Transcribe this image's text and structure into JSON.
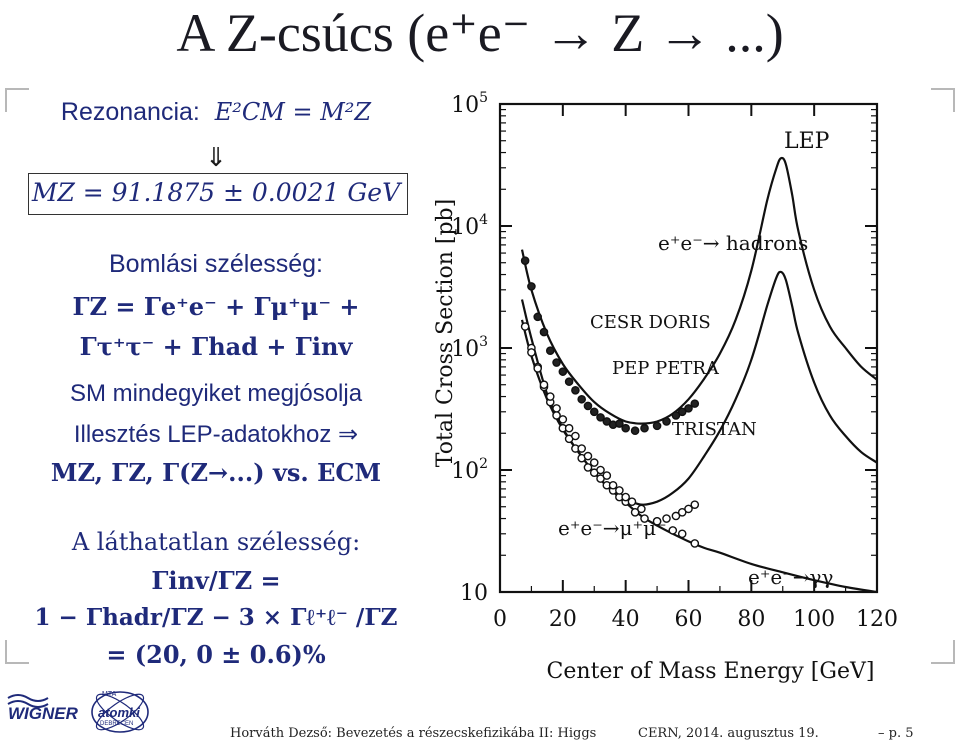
{
  "title": "A Z-csúcs (e⁺e⁻ → Z → ...)",
  "left": {
    "rezonancia_label": "Rezonancia:",
    "rezonancia_formula": "E²CM = M²Z",
    "arrow_down": "⇓",
    "mz_formula": "MZ = 91.1875 ± 0.0021 GeV",
    "bomlasi": "Bomlási szélesség:",
    "gamma_line1": "ΓZ = Γe⁺e⁻ + Γμ⁺μ⁻ +",
    "gamma_line2": "Γτ⁺τ⁻ + Γhad + Γinv",
    "sm_text": "SM mindegyiket megjósolja",
    "illesztes": "Illesztés LEP-adatokhoz ⇒",
    "mz_gz": "MZ, ΓZ, Γ(Z→...) vs. ECM",
    "lathatatlan": "A láthatatlan szélesség:",
    "ginv_line1": "Γinv/ΓZ =",
    "ginv_line2": "1 − Γhadr/ΓZ − 3 × Γℓ⁺ℓ⁻ /ΓZ",
    "ginv_line3": "= (20, 0 ± 0.6)%"
  },
  "logo": {
    "wigner": "WIGNER",
    "atomki": "atomki",
    "mta": "MTA",
    "debrecen": "DEBRECEN"
  },
  "footer": {
    "author": "Horváth Dezső: Bevezetés a részecskefizikába II: Higgs",
    "place_date": "CERN, 2014. augusztus 19.",
    "page": "– p. 5"
  },
  "chart_data": {
    "type": "line",
    "ylabel": "Total Cross Section [pb]",
    "xlabel": "Center of Mass Energy [GeV]",
    "xlim": [
      0,
      120
    ],
    "ylim": [
      10,
      100000
    ],
    "yscale": "log",
    "x_ticks": [
      "0",
      "20",
      "40",
      "60",
      "80",
      "100",
      "120"
    ],
    "y_ticks": [
      "10",
      "10²",
      "10³",
      "10⁴",
      "10⁵"
    ],
    "annotations": {
      "lep": "LEP",
      "hadrons": "e⁺e⁻→ hadrons",
      "cesr": "CESR DORIS",
      "pep": "PEP PETRA",
      "tristan": "TRISTAN",
      "mumu": "e⁺e⁻→μ⁺μ⁻",
      "gg": "e⁺e⁻→γγ"
    },
    "series": [
      {
        "values": [
          [
            7,
            6400
          ],
          [
            10,
            3000
          ],
          [
            15,
            1300
          ],
          [
            20,
            740
          ],
          [
            25,
            500
          ],
          [
            30,
            360
          ],
          [
            35,
            290
          ],
          [
            40,
            250
          ],
          [
            45,
            240
          ],
          [
            50,
            250
          ],
          [
            55,
            290
          ],
          [
            60,
            380
          ],
          [
            65,
            560
          ],
          [
            70,
            900
          ],
          [
            75,
            1700
          ],
          [
            80,
            4300
          ],
          [
            85,
            16000
          ],
          [
            88,
            30000
          ],
          [
            89.5,
            36000
          ],
          [
            91,
            32000
          ],
          [
            93,
            18000
          ],
          [
            95,
            9000
          ],
          [
            100,
            3000
          ],
          [
            105,
            1500
          ],
          [
            110,
            1000
          ],
          [
            115,
            700
          ],
          [
            120,
            550
          ]
        ]
      },
      {
        "values": [
          [
            7,
            2500
          ],
          [
            10,
            1200
          ],
          [
            15,
            420
          ],
          [
            20,
            220
          ],
          [
            25,
            140
          ],
          [
            30,
            95
          ],
          [
            35,
            70
          ],
          [
            40,
            58
          ],
          [
            45,
            52
          ],
          [
            50,
            55
          ],
          [
            55,
            65
          ],
          [
            60,
            85
          ],
          [
            65,
            130
          ],
          [
            70,
            210
          ],
          [
            75,
            380
          ],
          [
            80,
            800
          ],
          [
            85,
            2200
          ],
          [
            88,
            3800
          ],
          [
            89.5,
            4200
          ],
          [
            91,
            3600
          ],
          [
            93,
            2200
          ],
          [
            95,
            1300
          ],
          [
            100,
            520
          ],
          [
            105,
            280
          ],
          [
            110,
            190
          ],
          [
            115,
            140
          ],
          [
            120,
            115
          ]
        ]
      },
      {
        "values": [
          [
            7,
            1700
          ],
          [
            10,
            860
          ],
          [
            15,
            380
          ],
          [
            20,
            215
          ],
          [
            25,
            140
          ],
          [
            30,
            95
          ],
          [
            35,
            70
          ],
          [
            40,
            54
          ],
          [
            45,
            42
          ],
          [
            50,
            35
          ],
          [
            55,
            30
          ],
          [
            60,
            26
          ],
          [
            65,
            23
          ],
          [
            70,
            21
          ],
          [
            80,
            17
          ],
          [
            90,
            14.5
          ],
          [
            100,
            12.5
          ],
          [
            110,
            11
          ],
          [
            120,
            10
          ]
        ]
      },
      {
        "values": [
          [
            8,
            5200
          ],
          [
            10,
            3200
          ],
          [
            12,
            1800
          ],
          [
            14,
            1350
          ],
          [
            16,
            950
          ],
          [
            18,
            760
          ],
          [
            20,
            640
          ],
          [
            22,
            530
          ],
          [
            24,
            450
          ],
          [
            26,
            380
          ],
          [
            28,
            335
          ],
          [
            30,
            300
          ],
          [
            32,
            270
          ],
          [
            34,
            250
          ],
          [
            36,
            235
          ],
          [
            38,
            240
          ],
          [
            40,
            220
          ],
          [
            43,
            210
          ],
          [
            46,
            220
          ],
          [
            50,
            230
          ],
          [
            53,
            250
          ],
          [
            56,
            280
          ],
          [
            58,
            300
          ],
          [
            60,
            320
          ],
          [
            62,
            350
          ]
        ]
      },
      {
        "values": [
          [
            8,
            1500
          ],
          [
            10,
            1000
          ],
          [
            12,
            700
          ],
          [
            14,
            480
          ],
          [
            16,
            360
          ],
          [
            18,
            280
          ],
          [
            20,
            220
          ],
          [
            22,
            180
          ],
          [
            24,
            150
          ],
          [
            26,
            125
          ],
          [
            28,
            105
          ],
          [
            30,
            95
          ],
          [
            32,
            85
          ],
          [
            34,
            75
          ],
          [
            36,
            68
          ],
          [
            38,
            60
          ],
          [
            40,
            55
          ],
          [
            43,
            45
          ],
          [
            46,
            40
          ],
          [
            50,
            38
          ],
          [
            53,
            40
          ],
          [
            56,
            42
          ],
          [
            58,
            45
          ],
          [
            60,
            48
          ],
          [
            62,
            52
          ]
        ]
      },
      {
        "values": [
          [
            10,
            920
          ],
          [
            12,
            680
          ],
          [
            14,
            500
          ],
          [
            16,
            400
          ],
          [
            18,
            320
          ],
          [
            20,
            260
          ],
          [
            22,
            220
          ],
          [
            24,
            190
          ],
          [
            26,
            150
          ],
          [
            28,
            130
          ],
          [
            30,
            115
          ],
          [
            32,
            100
          ],
          [
            34,
            90
          ],
          [
            36,
            75
          ],
          [
            38,
            68
          ],
          [
            40,
            60
          ],
          [
            42,
            55
          ],
          [
            45,
            48
          ],
          [
            50,
            38
          ],
          [
            55,
            32
          ],
          [
            58,
            30
          ],
          [
            62,
            25
          ]
        ]
      }
    ]
  }
}
